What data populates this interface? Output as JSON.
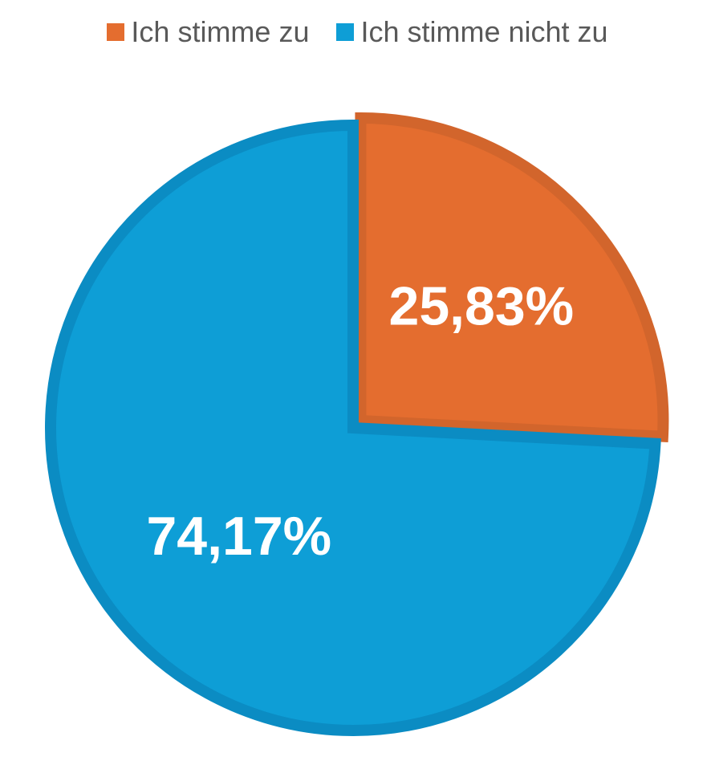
{
  "chart_data": {
    "type": "pie",
    "categories": [
      "Ich stimme zu",
      "Ich stimme nicht zu"
    ],
    "values": [
      25.83,
      74.17
    ],
    "data_labels": [
      "25,83%",
      "74,17%"
    ],
    "colors": [
      "#E46D2F",
      "#0E9ED6"
    ],
    "border_colors": [
      "#D2652C",
      "#0B8CC3"
    ],
    "legend_position": "top",
    "start_angle_deg": 0,
    "direction": "clockwise",
    "exploded": "Ich stimme zu"
  }
}
